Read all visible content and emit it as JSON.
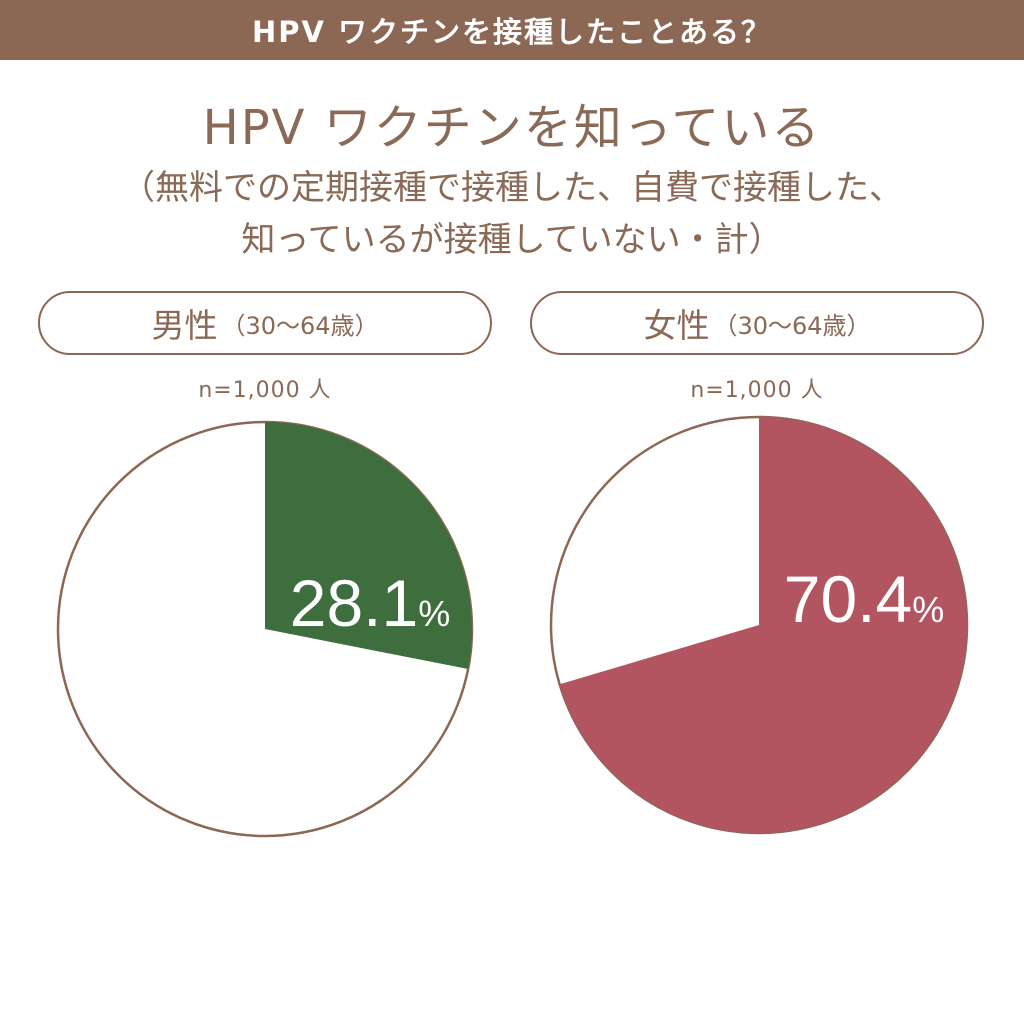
{
  "header": {
    "banner": "HPV ワクチンを接種したことある？"
  },
  "title": {
    "main": "HPV ワクチンを知っている",
    "sub_line1": "（無料での定期接種で接種した、自費で接種した、",
    "sub_line2": "知っているが接種していない・計）"
  },
  "colors": {
    "banner": "#8b6754",
    "text": "#8a6a57",
    "male_slice": "#3e6e3e",
    "female_slice": "#b35560",
    "outline": "#8b6754"
  },
  "chart_data": [
    {
      "type": "pie",
      "group_label": "男性",
      "age_range": "（30〜64歳）",
      "n_label": "n=1,000 人",
      "values": [
        28.1,
        71.9
      ],
      "value_label": "28.1",
      "unit": "%"
    },
    {
      "type": "pie",
      "group_label": "女性",
      "age_range": "（30〜64歳）",
      "n_label": "n=1,000 人",
      "values": [
        70.4,
        29.6
      ],
      "value_label": "70.4",
      "unit": "%"
    }
  ]
}
